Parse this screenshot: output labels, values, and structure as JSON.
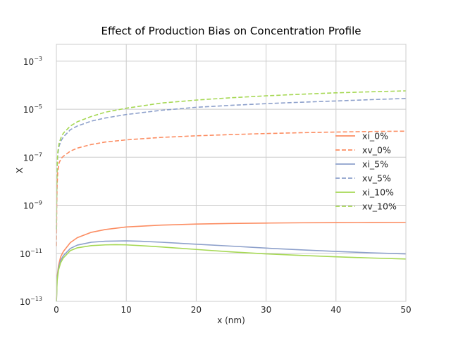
{
  "chart_data": {
    "type": "line",
    "title": "Effect of Production Bias on Concentration Profile",
    "xlabel": "x (nm)",
    "ylabel": "X",
    "xlim": [
      0,
      50
    ],
    "ylim": [
      1e-13,
      0.005
    ],
    "yscale": "log",
    "grid": true,
    "legend_position": "center-right",
    "x_ticks": [
      0,
      10,
      20,
      30,
      40,
      50
    ],
    "y_ticks": [
      {
        "value": 1e-13,
        "base": "10",
        "exp": "−13"
      },
      {
        "value": 1e-11,
        "base": "10",
        "exp": "−11"
      },
      {
        "value": 1e-09,
        "base": "10",
        "exp": "−9"
      },
      {
        "value": 1e-07,
        "base": "10",
        "exp": "−7"
      },
      {
        "value": 1e-05,
        "base": "10",
        "exp": "−5"
      },
      {
        "value": 0.001,
        "base": "10",
        "exp": "−3"
      }
    ],
    "series": [
      {
        "name": "xi_0%",
        "color": "#fc8d62",
        "dash": "solid",
        "x": [
          0.01,
          0.1,
          0.3,
          0.6,
          1,
          2,
          3,
          5,
          7,
          10,
          15,
          20,
          25,
          30,
          35,
          40,
          45,
          50
        ],
        "y": [
          1.2e-13,
          1e-12,
          3e-12,
          7e-12,
          1.2e-11,
          2.8e-11,
          4.5e-11,
          7.5e-11,
          9.8e-11,
          1.25e-10,
          1.5e-10,
          1.65e-10,
          1.75e-10,
          1.82e-10,
          1.87e-10,
          1.9e-10,
          1.93e-10,
          1.95e-10
        ]
      },
      {
        "name": "xv_0%",
        "color": "#fc8d62",
        "dash": "dashed",
        "x": [
          0.01,
          0.05,
          0.1,
          0.2,
          0.4,
          0.7,
          1,
          2,
          3,
          5,
          7,
          10,
          15,
          20,
          25,
          30,
          35,
          40,
          45,
          50
        ],
        "y": [
          2e-11,
          1e-09,
          6e-09,
          2.5e-08,
          6e-08,
          9e-08,
          1.1e-07,
          1.8e-07,
          2.4e-07,
          3.4e-07,
          4.3e-07,
          5.3e-07,
          6.7e-07,
          7.8e-07,
          8.8e-07,
          9.7e-07,
          1.05e-06,
          1.12e-06,
          1.18e-06,
          1.22e-06
        ]
      },
      {
        "name": "xi_5%",
        "color": "#8da0cb",
        "dash": "solid",
        "x": [
          0.01,
          0.1,
          0.3,
          0.6,
          1,
          2,
          3,
          5,
          7,
          10,
          12,
          15,
          20,
          25,
          30,
          35,
          40,
          45,
          50
        ],
        "y": [
          1e-13,
          8e-13,
          2.5e-12,
          5e-12,
          8e-12,
          1.6e-11,
          2.2e-11,
          2.9e-11,
          3.2e-11,
          3.3e-11,
          3.2e-11,
          2.9e-11,
          2.4e-11,
          2e-11,
          1.65e-11,
          1.4e-11,
          1.2e-11,
          1.05e-11,
          9.5e-12
        ]
      },
      {
        "name": "xv_5%",
        "color": "#8da0cb",
        "dash": "dashed",
        "x": [
          0.01,
          0.05,
          0.1,
          0.2,
          0.4,
          0.7,
          1,
          2,
          3,
          5,
          7,
          10,
          15,
          20,
          25,
          30,
          35,
          40,
          45,
          50
        ],
        "y": [
          1e-10,
          5e-09,
          3e-08,
          1.3e-07,
          3e-07,
          5e-07,
          7e-07,
          1.4e-06,
          2e-06,
          3.2e-06,
          4.3e-06,
          6e-06,
          9e-06,
          1.2e-05,
          1.45e-05,
          1.7e-05,
          1.95e-05,
          2.2e-05,
          2.5e-05,
          2.8e-05
        ]
      },
      {
        "name": "xi_10%",
        "color": "#a6d854",
        "dash": "solid",
        "x": [
          0.01,
          0.1,
          0.3,
          0.6,
          1,
          2,
          3,
          5,
          7,
          8.5,
          10,
          12,
          15,
          20,
          25,
          30,
          35,
          40,
          45,
          50
        ],
        "y": [
          1e-13,
          7e-13,
          2e-12,
          4e-12,
          6.5e-12,
          1.3e-11,
          1.7e-11,
          2.1e-11,
          2.25e-11,
          2.3e-11,
          2.25e-11,
          2.1e-11,
          1.85e-11,
          1.45e-11,
          1.15e-11,
          9.5e-12,
          8.2e-12,
          7.2e-12,
          6.4e-12,
          5.8e-12
        ]
      },
      {
        "name": "xv_10%",
        "color": "#a6d854",
        "dash": "dashed",
        "x": [
          0.01,
          0.05,
          0.1,
          0.2,
          0.4,
          0.7,
          1,
          2,
          3,
          5,
          7,
          10,
          15,
          20,
          25,
          30,
          35,
          40,
          45,
          50
        ],
        "y": [
          1e-10,
          6e-09,
          3.5e-08,
          1.6e-07,
          4e-07,
          7e-07,
          1e-06,
          2e-06,
          3e-06,
          5e-06,
          7.5e-06,
          1.1e-05,
          1.8e-05,
          2.4e-05,
          3e-05,
          3.6e-05,
          4.2e-05,
          4.8e-05,
          5.3e-05,
          5.8e-05
        ]
      }
    ]
  }
}
